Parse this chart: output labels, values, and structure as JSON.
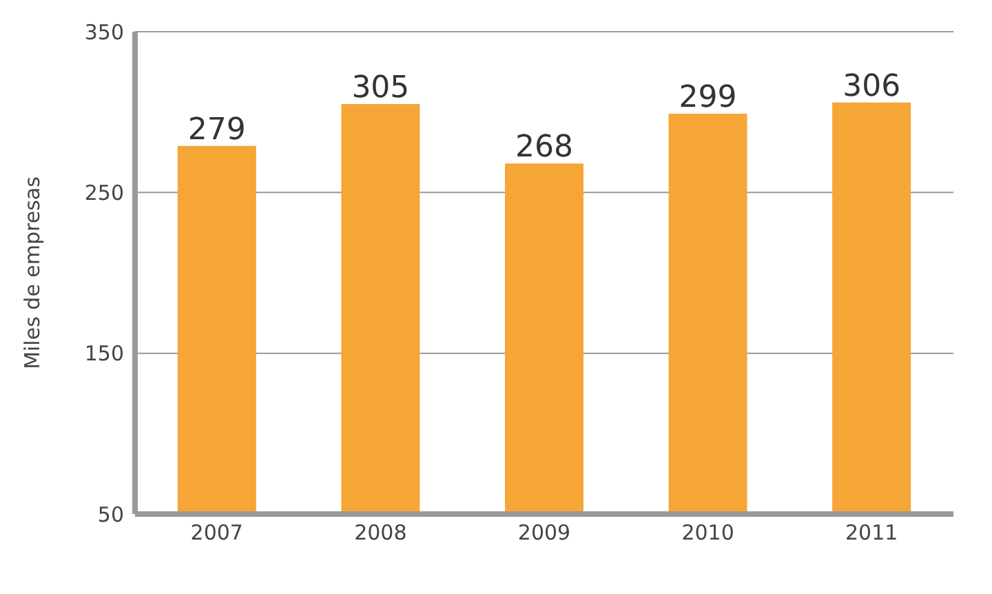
{
  "chart_data": {
    "type": "bar",
    "ylabel": "Miles de empresas",
    "categories": [
      "2007",
      "2008",
      "2009",
      "2010",
      "2011"
    ],
    "values": [
      279,
      305,
      268,
      299,
      306
    ],
    "color": "#f6a537",
    "ylim": [
      50,
      350
    ],
    "yticks": [
      50,
      150,
      250,
      350
    ],
    "grid": "y",
    "data_labels": true
  }
}
